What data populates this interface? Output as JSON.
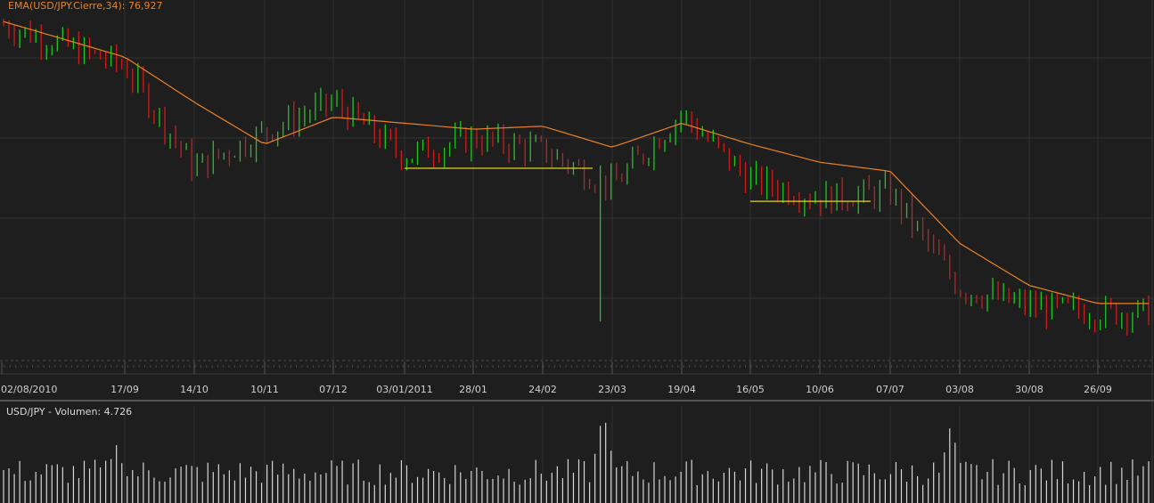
{
  "window": {
    "price_label": "EMA(USD/JPY.Cierre,34): 76,927",
    "volume_label": "USD/JPY - Volumen: 4.726"
  },
  "colors": {
    "background": "#1e1e1e",
    "grid": "#323232",
    "up_candle": "#21c421",
    "down_candle": "#c81e1e",
    "ema_line": "#e8822a",
    "support_line": "#e6d21e",
    "volume_bar": "#d7d7d7",
    "axis_text": "#cfcfcf",
    "ema_label_text": "#e8822a"
  },
  "chart_data": [
    {
      "type": "candlestick",
      "title": "",
      "indicator": "EMA(USD/JPY.Cierre,34)",
      "indicator_last_value": 76.927,
      "x_tick_labels": [
        "02/08/2010",
        "17/09",
        "14/10",
        "10/11",
        "07/12",
        "03/01/2011",
        "28/01",
        "24/02",
        "23/03",
        "19/04",
        "16/05",
        "10/06",
        "07/07",
        "03/08",
        "30/08",
        "26/09"
      ],
      "price_series_key_points": [
        {
          "x": "02/08/2010",
          "close": 86.2
        },
        {
          "x": "17/09",
          "close": 84.8
        },
        {
          "x": "14/10",
          "close": 81.4
        },
        {
          "x": "10/11",
          "close": 82.6
        },
        {
          "x": "07/12",
          "close": 83.6
        },
        {
          "x": "03/01/2011",
          "close": 81.8
        },
        {
          "x": "28/01",
          "close": 82.4
        },
        {
          "x": "24/02",
          "close": 82.0
        },
        {
          "x": "23/03",
          "close": 80.8
        },
        {
          "x": "19/04",
          "close": 83.2
        },
        {
          "x": "16/05",
          "close": 81.0
        },
        {
          "x": "10/06",
          "close": 80.4
        },
        {
          "x": "07/07",
          "close": 80.6
        },
        {
          "x": "03/08",
          "close": 77.4
        },
        {
          "x": "30/08",
          "close": 76.8
        },
        {
          "x": "26/09",
          "close": 76.6
        }
      ],
      "ema_key_points": [
        {
          "x": "02/08/2010",
          "value": 86.3
        },
        {
          "x": "17/09",
          "value": 85.1
        },
        {
          "x": "14/10",
          "value": 83.6
        },
        {
          "x": "10/11",
          "value": 82.2
        },
        {
          "x": "07/12",
          "value": 83.1
        },
        {
          "x": "03/01/2011",
          "value": 82.9
        },
        {
          "x": "28/01",
          "value": 82.7
        },
        {
          "x": "24/02",
          "value": 82.8
        },
        {
          "x": "23/03",
          "value": 82.1
        },
        {
          "x": "19/04",
          "value": 82.9
        },
        {
          "x": "16/05",
          "value": 82.2
        },
        {
          "x": "10/06",
          "value": 81.6
        },
        {
          "x": "07/07",
          "value": 81.3
        },
        {
          "x": "03/08",
          "value": 78.9
        },
        {
          "x": "30/08",
          "value": 77.5
        },
        {
          "x": "26/09",
          "value": 76.9
        }
      ],
      "support_lines": [
        {
          "from": "03/01/2011",
          "to": "23/03",
          "value": 81.4
        },
        {
          "from": "16/05",
          "to": "07/07",
          "value": 80.3
        }
      ],
      "event_low": {
        "x": "23/03",
        "low": 76.3
      },
      "ylim": [
        75.0,
        87.0
      ],
      "grid": true,
      "legend": "top-left"
    },
    {
      "type": "bar",
      "title": "",
      "series_label": "USD/JPY - Volumen",
      "last_value": 4726,
      "x_tick_labels": [
        "02/08/2010",
        "17/09",
        "14/10",
        "10/11",
        "07/12",
        "03/01/2011",
        "28/01",
        "24/02",
        "23/03",
        "19/04",
        "16/05",
        "10/06",
        "07/07",
        "03/08",
        "30/08",
        "26/09"
      ],
      "peaks": [
        {
          "x": "17/09",
          "value": 6800
        },
        {
          "x": "23/03",
          "value": 10500
        },
        {
          "x": "03/08",
          "value": 9000
        }
      ],
      "typical_range": [
        2000,
        5000
      ],
      "ylim": [
        0,
        11000
      ],
      "grid": true
    }
  ]
}
